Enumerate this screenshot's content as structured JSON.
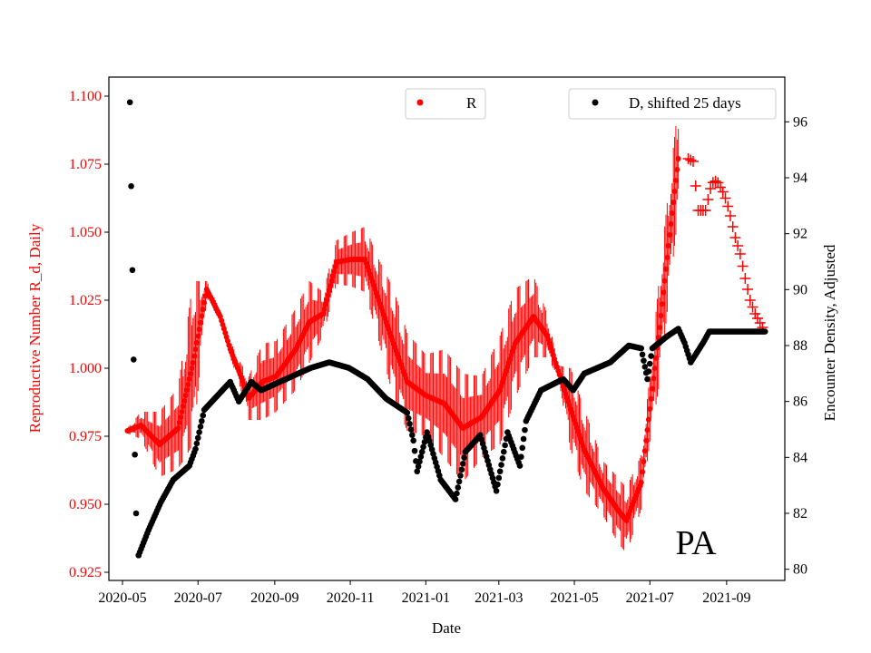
{
  "chart_data": {
    "type": "scatter",
    "annotation": "PA",
    "xlabel": "Date",
    "ylabel_left": "Reproductive Number R_d, Daily",
    "ylabel_right": "Encounter Density, Adjusted",
    "x_ticks": [
      "2020-05",
      "2020-07",
      "2020-09",
      "2020-11",
      "2021-01",
      "2021-03",
      "2021-05",
      "2021-07",
      "2021-09"
    ],
    "y_left_ticks": [
      "0.925",
      "0.950",
      "0.975",
      "1.000",
      "1.025",
      "1.050",
      "1.075",
      "1.100"
    ],
    "y_right_ticks": [
      "80",
      "82",
      "84",
      "86",
      "88",
      "90",
      "92",
      "94",
      "96"
    ],
    "ylim_left": [
      0.922,
      1.107
    ],
    "ylim_right": [
      79.6,
      97.6
    ],
    "xlim": [
      "2020-04-20",
      "2021-10-18"
    ],
    "grid": false,
    "legend": [
      {
        "label": "R",
        "color": "#ff0000",
        "placement": "top-center"
      },
      {
        "label": "D, shifted 25 days",
        "color": "#000000",
        "placement": "top-right"
      }
    ],
    "colors": {
      "R": "#ff0000",
      "D": "#000000",
      "left_axis": "#ff0000",
      "right_axis": "#000000"
    },
    "series": [
      {
        "name": "R",
        "axis": "left",
        "marker": "circle",
        "errorbars": true,
        "points": [
          [
            "2020-05-05",
            0.977,
            0.001
          ],
          [
            "2020-05-16",
            0.979,
            0.005
          ],
          [
            "2020-05-31",
            0.972,
            0.012
          ],
          [
            "2020-06-15",
            0.978,
            0.015
          ],
          [
            "2020-06-27",
            1.002,
            0.03
          ],
          [
            "2020-07-08",
            1.029,
            0.003
          ],
          [
            "2020-07-19",
            1.019,
            0.002
          ],
          [
            "2020-07-27",
            1.007,
            0.003
          ],
          [
            "2020-08-03",
            0.999,
            0.004
          ],
          [
            "2020-08-11",
            0.989,
            0.008
          ],
          [
            "2020-08-22",
            0.995,
            0.014
          ],
          [
            "2020-09-02",
            0.997,
            0.013
          ],
          [
            "2020-09-18",
            1.007,
            0.015
          ],
          [
            "2020-09-29",
            1.017,
            0.015
          ],
          [
            "2020-10-10",
            1.02,
            0.008
          ],
          [
            "2020-10-21",
            1.039,
            0.008
          ],
          [
            "2020-11-02",
            1.04,
            0.01
          ],
          [
            "2020-11-13",
            1.04,
            0.012
          ],
          [
            "2020-11-24",
            1.025,
            0.015
          ],
          [
            "2020-12-06",
            1.009,
            0.02
          ],
          [
            "2020-12-17",
            0.995,
            0.018
          ],
          [
            "2021-01-01",
            0.99,
            0.015
          ],
          [
            "2021-01-16",
            0.987,
            0.02
          ],
          [
            "2021-01-31",
            0.978,
            0.02
          ],
          [
            "2021-02-15",
            0.982,
            0.015
          ],
          [
            "2021-03-02",
            0.992,
            0.02
          ],
          [
            "2021-03-14",
            1.009,
            0.02
          ],
          [
            "2021-03-29",
            1.019,
            0.015
          ],
          [
            "2021-04-09",
            1.012,
            0.008
          ],
          [
            "2021-04-18",
            0.999,
            0.002
          ],
          [
            "2021-04-28",
            0.985,
            0.015
          ],
          [
            "2021-05-09",
            0.97,
            0.015
          ],
          [
            "2021-05-24",
            0.956,
            0.01
          ],
          [
            "2021-06-05",
            0.948,
            0.012
          ],
          [
            "2021-06-12",
            0.944,
            0.012
          ],
          [
            "2021-06-24",
            0.958,
            0.01
          ],
          [
            "2021-07-01",
            0.985,
            0.012
          ],
          [
            "2021-07-09",
            1.015,
            0.02
          ],
          [
            "2021-07-16",
            1.045,
            0.02
          ],
          [
            "2021-07-24",
            1.077,
            0.02
          ]
        ]
      },
      {
        "name": "R",
        "axis": "left",
        "marker": "plus",
        "errorbars": false,
        "points": [
          [
            "2021-08-01",
            1.077
          ],
          [
            "2021-08-05",
            1.076
          ],
          [
            "2021-08-09",
            1.058
          ],
          [
            "2021-08-15",
            1.058
          ],
          [
            "2021-08-20",
            1.068
          ],
          [
            "2021-08-24",
            1.069
          ],
          [
            "2021-08-30",
            1.064
          ],
          [
            "2021-09-03",
            1.058
          ],
          [
            "2021-09-08",
            1.048
          ],
          [
            "2021-09-12",
            1.042
          ],
          [
            "2021-09-16",
            1.033
          ],
          [
            "2021-09-20",
            1.025
          ],
          [
            "2021-09-24",
            1.02
          ],
          [
            "2021-09-30",
            1.015
          ]
        ]
      },
      {
        "name": "D, shifted 25 days",
        "axis": "right",
        "marker": "circle",
        "points": [
          [
            "2020-05-07",
            96.7
          ],
          [
            "2020-05-08",
            93.7
          ],
          [
            "2020-05-09",
            90.7
          ],
          [
            "2020-05-10",
            87.5
          ],
          [
            "2020-05-11",
            84.1
          ],
          [
            "2020-05-12",
            82.0
          ],
          [
            "2020-05-14",
            80.5
          ],
          [
            "2020-05-22",
            81.4
          ],
          [
            "2020-06-01",
            82.4
          ],
          [
            "2020-06-11",
            83.2
          ],
          [
            "2020-06-24",
            83.7
          ],
          [
            "2020-06-29",
            84.3
          ],
          [
            "2020-07-06",
            85.7
          ],
          [
            "2020-07-27",
            86.7
          ],
          [
            "2020-08-03",
            86.0
          ],
          [
            "2020-08-13",
            86.7
          ],
          [
            "2020-08-21",
            86.4
          ],
          [
            "2020-09-10",
            86.8
          ],
          [
            "2020-09-30",
            87.2
          ],
          [
            "2020-10-15",
            87.4
          ],
          [
            "2020-10-31",
            87.2
          ],
          [
            "2020-11-15",
            86.8
          ],
          [
            "2020-11-30",
            86.1
          ],
          [
            "2020-12-17",
            85.6
          ],
          [
            "2020-12-22",
            84.6
          ],
          [
            "2020-12-25",
            83.5
          ],
          [
            "2021-01-02",
            84.9
          ],
          [
            "2021-01-13",
            83.2
          ],
          [
            "2021-01-25",
            82.5
          ],
          [
            "2021-02-02",
            84.2
          ],
          [
            "2021-02-14",
            84.8
          ],
          [
            "2021-02-27",
            82.8
          ],
          [
            "2021-03-08",
            84.9
          ],
          [
            "2021-03-18",
            83.7
          ],
          [
            "2021-03-23",
            85.3
          ],
          [
            "2021-04-04",
            86.4
          ],
          [
            "2021-04-22",
            86.8
          ],
          [
            "2021-04-30",
            86.4
          ],
          [
            "2021-05-09",
            87.0
          ],
          [
            "2021-05-30",
            87.4
          ],
          [
            "2021-06-14",
            88.0
          ],
          [
            "2021-06-24",
            87.9
          ],
          [
            "2021-06-29",
            86.8
          ],
          [
            "2021-07-03",
            87.9
          ],
          [
            "2021-07-14",
            88.3
          ],
          [
            "2021-07-24",
            88.6
          ],
          [
            "2021-07-29",
            88.1
          ],
          [
            "2021-08-03",
            87.4
          ],
          [
            "2021-08-13",
            88.1
          ],
          [
            "2021-08-18",
            88.5
          ],
          [
            "2021-10-02",
            88.5
          ]
        ]
      }
    ]
  }
}
